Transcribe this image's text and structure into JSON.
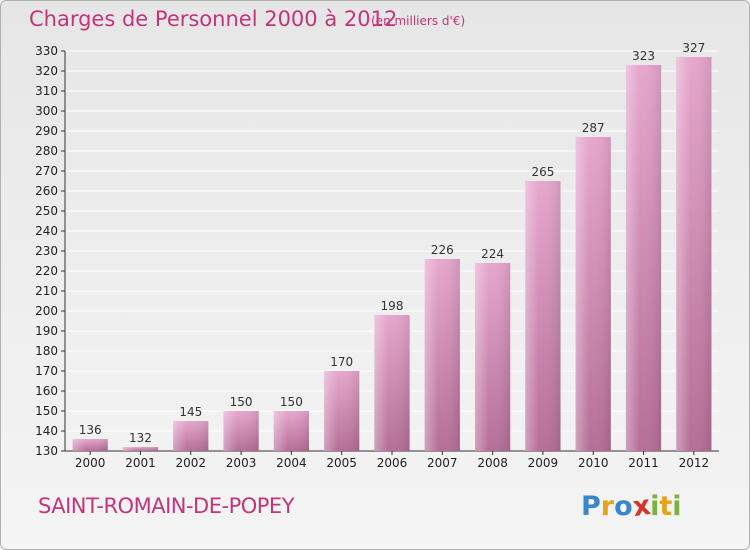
{
  "title": "Charges de Personnel 2000 à 2012",
  "subtitle": "(en milliers d'€)",
  "place": "SAINT-ROMAIN-DE-POPEY",
  "logo": {
    "text": "Proxiti",
    "letters": [
      {
        "ch": "P",
        "color": "#3a86c8"
      },
      {
        "ch": "r",
        "color": "#e7a21a"
      },
      {
        "ch": "o",
        "color": "#3a86c8"
      },
      {
        "ch": "x",
        "color": "#d8332a"
      },
      {
        "ch": "i",
        "color": "#7bb33a"
      },
      {
        "ch": "t",
        "color": "#e7a21a"
      },
      {
        "ch": "i",
        "color": "#7bb33a"
      }
    ]
  },
  "colors": {
    "accent": "#c2357a",
    "bar_light": "#e6a6cd",
    "bar_dark": "#b76e98",
    "grid": "#ffffff",
    "axis_text": "#222222"
  },
  "chart_data": {
    "type": "bar",
    "title": "Charges de Personnel 2000 à 2012",
    "subtitle": "(en milliers d'€)",
    "categories": [
      "2000",
      "2001",
      "2002",
      "2003",
      "2004",
      "2005",
      "2006",
      "2007",
      "2008",
      "2009",
      "2010",
      "2011",
      "2012"
    ],
    "values": [
      136,
      132,
      145,
      150,
      150,
      170,
      198,
      226,
      224,
      265,
      287,
      323,
      327
    ],
    "ylim": [
      130,
      330
    ],
    "yticks": [
      130,
      140,
      150,
      160,
      170,
      180,
      190,
      200,
      210,
      220,
      230,
      240,
      250,
      260,
      270,
      280,
      290,
      300,
      310,
      320,
      330
    ],
    "grid": true,
    "legend": "none"
  }
}
